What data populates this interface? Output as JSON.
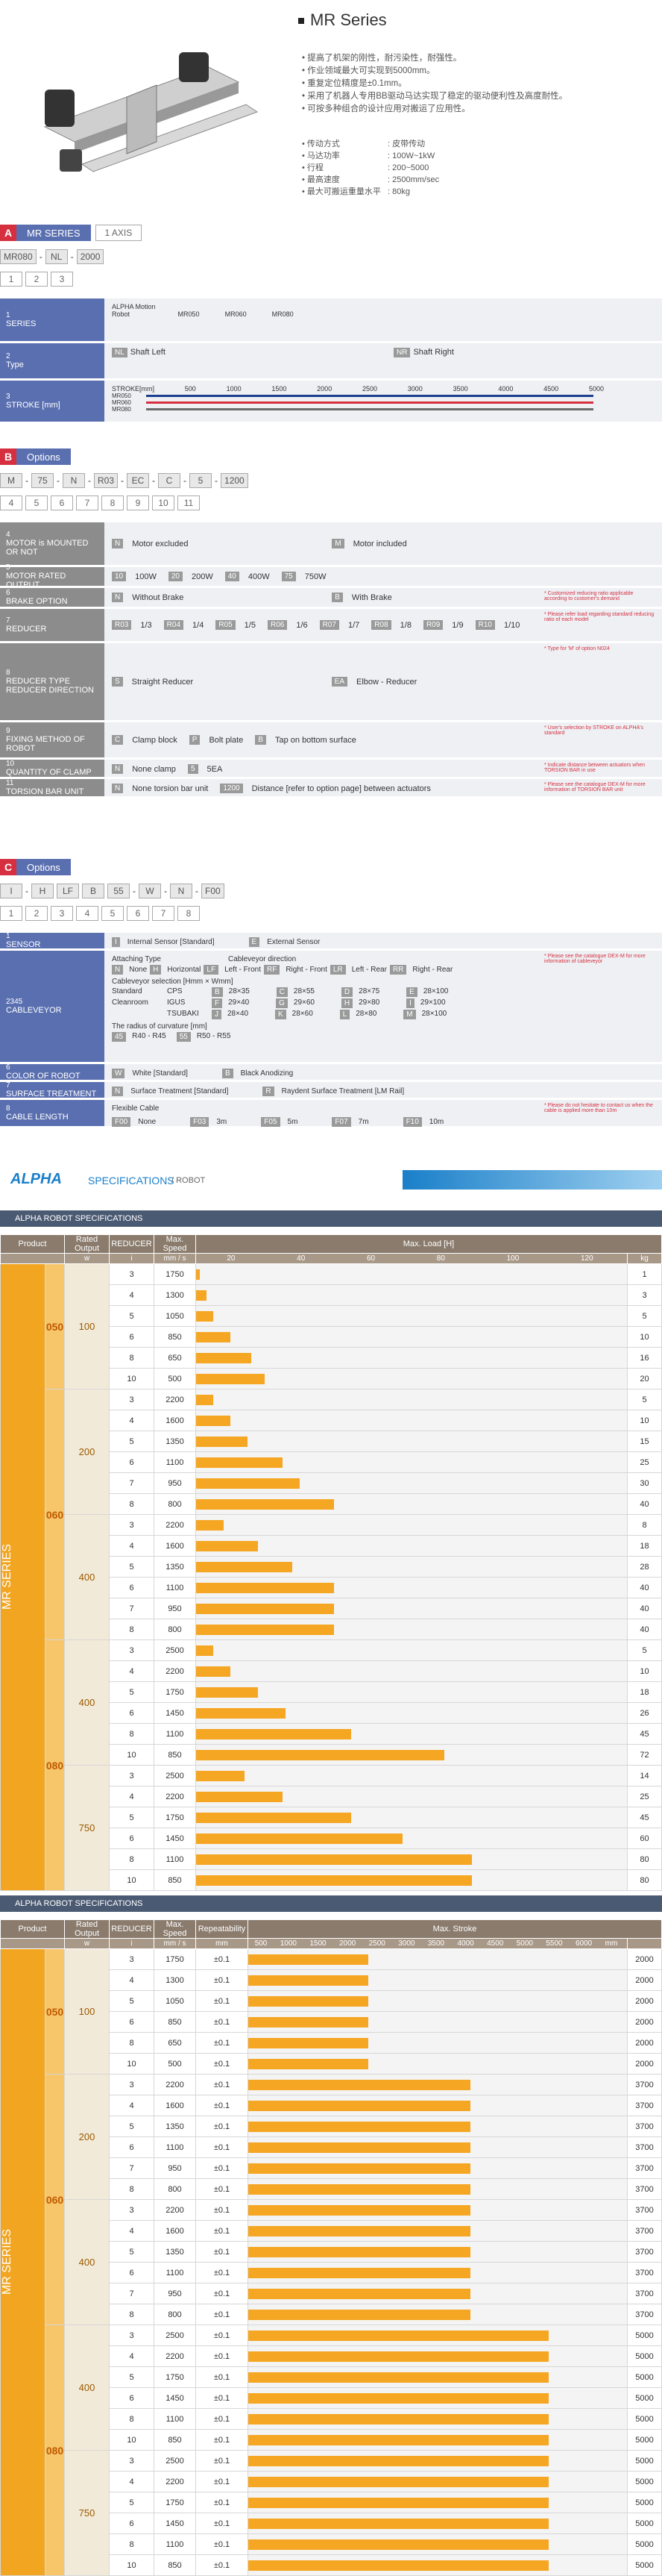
{
  "header": {
    "title": "MR Series",
    "features": [
      "提高了机架的刚性，耐污染性，耐强性。",
      "作业领域最大可实现到5000mm。",
      "重复定位精度是±0.1mm。",
      "采用了机器人专用BB驱动马达实现了稳定的驱动便利性及高度耐性。",
      "可按多种组合的设计应用对搬运了应用性。"
    ],
    "specs": [
      {
        "k": "传动方式",
        "v": ": 皮带传动"
      },
      {
        "k": "马达功率",
        "v": ": 100W~1kW"
      },
      {
        "k": "行程",
        "v": ": 200~5000"
      },
      {
        "k": "最高速度",
        "v": ": 2500mm/sec"
      },
      {
        "k": "最大可搬运重量水平",
        "v": ": 80kg"
      }
    ]
  },
  "sectionA": {
    "letter": "A",
    "title": "MR SERIES",
    "sub": "1 AXIS",
    "codes": [
      "MR080",
      "-",
      "NL",
      "-",
      "2000"
    ],
    "nums": [
      "1",
      "2",
      "3"
    ],
    "rows": [
      {
        "n": "1",
        "label": "SERIES",
        "text": "ALPHA Motion Robot",
        "items": [
          "MR050",
          "MR060",
          "MR080"
        ]
      },
      {
        "n": "2",
        "label": "Type",
        "left_chip": "NL",
        "left": "Shaft Left",
        "right_chip": "NR",
        "right": "Shaft Right"
      },
      {
        "n": "3",
        "label": "STROKE [mm]",
        "strokes": [
          "STROKE[mm]",
          "500",
          "1000",
          "1500",
          "2000",
          "2500",
          "3000",
          "3500",
          "4000",
          "4500",
          "5000"
        ],
        "series": [
          "MR050",
          "MR060",
          "MR080"
        ]
      }
    ]
  },
  "sectionB": {
    "letter": "B",
    "title": "Options",
    "codes": [
      "M",
      "-",
      "75",
      "-",
      "N",
      "-",
      "R03",
      "-",
      "EC",
      "-",
      "C",
      "-",
      "5",
      "-",
      "1200"
    ],
    "nums": [
      "4",
      "5",
      "6",
      "7",
      "8",
      "9",
      "10",
      "11"
    ],
    "rows": [
      {
        "n": "4",
        "label": "MOTOR is MOUNTED OR NOT",
        "a_chip": "N",
        "a": "Motor excluded",
        "b_chip": "M",
        "b": "Motor included"
      },
      {
        "n": "5",
        "label": "MOTOR RATED OUTPUT",
        "opts": [
          [
            "10",
            "100W"
          ],
          [
            "20",
            "200W"
          ],
          [
            "40",
            "400W"
          ],
          [
            "75",
            "750W"
          ]
        ]
      },
      {
        "n": "6",
        "label": "BRAKE OPTION",
        "a_chip": "N",
        "a": "Without Brake",
        "b_chip": "B",
        "b": "With Brake",
        "note": "* Customized reducing ratio applicable according to customer's demand"
      },
      {
        "n": "7",
        "label": "REDUCER",
        "opts": [
          [
            "R03",
            "1/3"
          ],
          [
            "R04",
            "1/4"
          ],
          [
            "R05",
            "1/5"
          ],
          [
            "R06",
            "1/6"
          ],
          [
            "R07",
            "1/7"
          ],
          [
            "R08",
            "1/8"
          ],
          [
            "R09",
            "1/9"
          ],
          [
            "R10",
            "1/10"
          ]
        ],
        "note": "* Please refer load regarding standard reducing ratio of each model"
      },
      {
        "n": "8",
        "label": "REDUCER TYPE REDUCER DIRECTION",
        "a_chip": "S",
        "a": "Straight Reducer",
        "b_chip": "EA",
        "b": "Elbow - Reducer",
        "note": "* Type for 'M' of option N024"
      },
      {
        "n": "9",
        "label": "FIXING METHOD OF ROBOT",
        "opts": [
          [
            "C",
            "Clamp block"
          ],
          [
            "P",
            "Bolt plate"
          ],
          [
            "B",
            "Tap on bottom surface"
          ]
        ],
        "note": "* User's selection by STROKE on ALPHA's standard"
      },
      {
        "n": "10",
        "label": "QUANTITY OF CLAMP",
        "opts": [
          [
            "N",
            "None clamp"
          ],
          [
            "5",
            "5EA"
          ]
        ],
        "note": "* Indicate distance between actuators when TORSION BAR in use"
      },
      {
        "n": "11",
        "label": "TORSION BAR UNIT",
        "opts": [
          [
            "N",
            "None torsion bar unit"
          ],
          [
            "1200",
            "Distance [refer to option page] between actuators"
          ]
        ],
        "note": "* Please see the catalogue DEX-M for more information of TORSION BAR unit"
      }
    ]
  },
  "sectionC": {
    "letter": "C",
    "title": "Options",
    "codes": [
      "I",
      "-",
      "H",
      "LF",
      "B",
      "55",
      "-",
      "W",
      "-",
      "N",
      "-",
      "F00"
    ],
    "nums": [
      "1",
      "2",
      "3",
      "4",
      "5",
      "6",
      "7",
      "8"
    ],
    "rows": [
      {
        "n": "1",
        "label": "SENSOR",
        "opts": [
          [
            "I",
            "Internal Sensor [Standard]"
          ],
          [
            "E",
            "External Sensor"
          ]
        ]
      },
      {
        "n": "2345",
        "label": "CABLEVEYOR",
        "attach": "Attaching Type",
        "attach_opts": [
          [
            "N",
            "None"
          ],
          [
            "H",
            "Horizontal"
          ]
        ],
        "dir": "Cableveyor direction",
        "dir_opts": [
          [
            "LF",
            "Left - Front"
          ],
          [
            "RF",
            "Right - Front"
          ],
          [
            "LR",
            "Left - Rear"
          ],
          [
            "RR",
            "Right - Rear"
          ]
        ],
        "sel": "Cableveyor selection [Hmm × Wmm]",
        "sel_rows": [
          [
            "Standard",
            "CPS",
            "B",
            "28×35",
            "C",
            "28×55",
            "D",
            "28×75",
            "E",
            "28×100"
          ],
          [
            "Cleanroom",
            "IGUS",
            "F",
            "29×40",
            "G",
            "29×60",
            "H",
            "29×80",
            "I",
            "29×100"
          ],
          [
            "",
            "TSUBAKI",
            "J",
            "28×40",
            "K",
            "28×60",
            "L",
            "28×80",
            "M",
            "28×100"
          ]
        ],
        "radius": "The radius of curvature [mm]",
        "radius_opts": [
          [
            "45",
            "R40 - R45"
          ],
          [
            "55",
            "R50 - R55"
          ]
        ],
        "note": "* Please see the catalogue DEX-M for more information of cableveyor"
      },
      {
        "n": "6",
        "label": "COLOR OF ROBOT",
        "opts": [
          [
            "W",
            "White [Standard]"
          ],
          [
            "B",
            "Black Anodizing"
          ]
        ]
      },
      {
        "n": "7",
        "label": "SURFACE TREATMENT",
        "opts": [
          [
            "N",
            "Surface Treatment [Standard]"
          ],
          [
            "R",
            "Raydent Surface Treatment [LM Rail]"
          ]
        ]
      },
      {
        "n": "8",
        "label": "CABLE LENGTH",
        "head": "Flexible Cable",
        "opts": [
          [
            "F00",
            "None"
          ],
          [
            "F03",
            "3m"
          ],
          [
            "F05",
            "5m"
          ],
          [
            "F07",
            "7m"
          ],
          [
            "F10",
            "10m"
          ]
        ],
        "note": "* Please do not hesitate to contact us when the cable is applied more than 10m"
      }
    ]
  },
  "banner": {
    "brand": "ALPHA",
    "title": "SPECIFICATIONS",
    "sub": "/ ROBOT"
  },
  "table1": {
    "caption": "ALPHA ROBOT SPECIFICATIONS",
    "headers": {
      "product": "Product",
      "rated": "Rated Output",
      "rated_unit": "w",
      "reducer": "REDUCER",
      "reducer_unit": "i",
      "speed": "Max. Speed",
      "speed_unit": "mm / s",
      "load": "Max. Load [H]",
      "load_unit": "kg"
    },
    "ticks": [
      "20",
      "40",
      "60",
      "80",
      "100",
      "120"
    ],
    "series_label": "MR",
    "series_sub": "SERIES",
    "groups": [
      {
        "product": "050",
        "output": "100",
        "rows": [
          [
            3,
            1750,
            1
          ],
          [
            4,
            1300,
            3
          ],
          [
            5,
            1050,
            5
          ],
          [
            6,
            850,
            10
          ],
          [
            8,
            650,
            16
          ],
          [
            10,
            500,
            20
          ]
        ]
      },
      {
        "product": "060",
        "output": "200",
        "rows": [
          [
            3,
            2200,
            5
          ],
          [
            4,
            1600,
            10
          ],
          [
            5,
            1350,
            15
          ],
          [
            6,
            1100,
            25
          ],
          [
            7,
            950,
            30
          ],
          [
            8,
            800,
            40
          ]
        ]
      },
      {
        "product": "060",
        "output": "400",
        "rows": [
          [
            3,
            2200,
            8
          ],
          [
            4,
            1600,
            18
          ],
          [
            5,
            1350,
            28
          ],
          [
            6,
            1100,
            40
          ],
          [
            7,
            950,
            40
          ],
          [
            8,
            800,
            40
          ]
        ]
      },
      {
        "product": "080",
        "output": "400",
        "rows": [
          [
            3,
            2500,
            5
          ],
          [
            4,
            2200,
            10
          ],
          [
            5,
            1750,
            18
          ],
          [
            6,
            1450,
            26
          ],
          [
            8,
            1100,
            45
          ],
          [
            10,
            850,
            72
          ]
        ]
      },
      {
        "product": "080",
        "output": "750",
        "rows": [
          [
            3,
            2500,
            14
          ],
          [
            4,
            2200,
            25
          ],
          [
            5,
            1750,
            45
          ],
          [
            6,
            1450,
            60
          ],
          [
            8,
            1100,
            80
          ],
          [
            10,
            850,
            80
          ]
        ]
      }
    ]
  },
  "table2": {
    "caption": "ALPHA ROBOT SPECIFICATIONS",
    "headers": {
      "product": "Product",
      "rated": "Rated Output",
      "rated_unit": "w",
      "reducer": "REDUCER",
      "reducer_unit": "i",
      "speed": "Max. Speed",
      "speed_unit": "mm / s",
      "rep": "Repeatability",
      "rep_unit": "mm",
      "stroke": "Max. Stroke"
    },
    "ticks": [
      "500",
      "1000",
      "1500",
      "2000",
      "2500",
      "3000",
      "3500",
      "4000",
      "4500",
      "5000",
      "5500",
      "6000",
      "mm"
    ],
    "rep_value": "±0.1",
    "groups": [
      {
        "product": "050",
        "output": "100",
        "rows": [
          [
            3,
            1750,
            2000
          ],
          [
            4,
            1300,
            2000
          ],
          [
            5,
            1050,
            2000
          ],
          [
            6,
            850,
            2000
          ],
          [
            8,
            650,
            2000
          ],
          [
            10,
            500,
            2000
          ]
        ]
      },
      {
        "product": "060",
        "output": "200",
        "rows": [
          [
            3,
            2200,
            3700
          ],
          [
            4,
            1600,
            3700
          ],
          [
            5,
            1350,
            3700
          ],
          [
            6,
            1100,
            3700
          ],
          [
            7,
            950,
            3700
          ],
          [
            8,
            800,
            3700
          ]
        ]
      },
      {
        "product": "060",
        "output": "400",
        "rows": [
          [
            3,
            2200,
            3700
          ],
          [
            4,
            1600,
            3700
          ],
          [
            5,
            1350,
            3700
          ],
          [
            6,
            1100,
            3700
          ],
          [
            7,
            950,
            3700
          ],
          [
            8,
            800,
            3700
          ]
        ]
      },
      {
        "product": "080",
        "output": "400",
        "rows": [
          [
            3,
            2500,
            5000
          ],
          [
            4,
            2200,
            5000
          ],
          [
            5,
            1750,
            5000
          ],
          [
            6,
            1450,
            5000
          ],
          [
            8,
            1100,
            5000
          ],
          [
            10,
            850,
            5000
          ]
        ]
      },
      {
        "product": "080",
        "output": "750",
        "rows": [
          [
            3,
            2500,
            5000
          ],
          [
            4,
            2200,
            5000
          ],
          [
            5,
            1750,
            5000
          ],
          [
            6,
            1450,
            5000
          ],
          [
            8,
            1100,
            5000
          ],
          [
            10,
            850,
            5000
          ]
        ]
      }
    ]
  },
  "colors": {
    "A": "#d63040",
    "B": "#d63040",
    "C": "#d63040",
    "label_blue": "#5a6fb0",
    "label_grey": "#8c8c8c",
    "bar": "#f5a623",
    "brand": "#1a7fc9"
  }
}
